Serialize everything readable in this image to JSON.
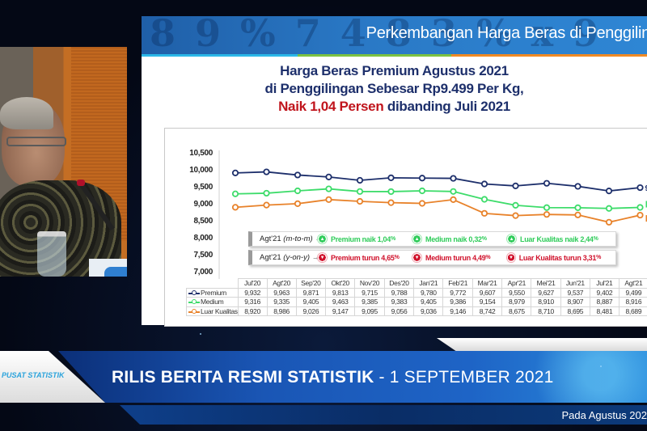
{
  "slide": {
    "header_title": "Perkembangan Harga Beras di Penggilin",
    "header_decoration": "8 9 % 7 4 8 3 % x 9",
    "headline": {
      "line1": "Harga Beras Premium Agustus 2021",
      "line2": "di Penggilingan Sebesar Rp9.499 Per Kg,",
      "line3_red": "Naik 1,04 Persen",
      "line3_rest": " dibanding Juli 2021"
    },
    "colors": {
      "premium": "#1d2f6b",
      "medium": "#3ddc6a",
      "luar_kualitas": "#e8822a",
      "up": "#2fcc5a",
      "down": "#d0112b"
    },
    "info_boxes": [
      {
        "label": "Agt'21",
        "label_italic": "(m-to-m)",
        "arrow": "→",
        "direction": "up",
        "items": [
          {
            "text": "Premium naik 1,04",
            "pct": "%"
          },
          {
            "text": "Medium naik 0,32",
            "pct": "%"
          },
          {
            "text": "Luar Kualitas naik 2,44",
            "pct": "%"
          }
        ]
      },
      {
        "label": "Agt'21",
        "label_italic": "(y-on-y)",
        "arrow": "→",
        "direction": "down",
        "items": [
          {
            "text": "Premium turun 4,65",
            "pct": "%"
          },
          {
            "text": "Medium turun 4,49",
            "pct": "%"
          },
          {
            "text": "Luar Kualitas turun 3,31",
            "pct": "%"
          }
        ]
      }
    ],
    "end_labels": {
      "premium": "9",
      "medium": "",
      "luar_kualitas": ""
    }
  },
  "chart_data": {
    "type": "line",
    "title": "Harga Beras Premium Agustus 2021 di Penggilingan Sebesar Rp9.499 Per Kg, Naik 1,04 Persen dibanding Juli 2021",
    "categories": [
      "Jul'20",
      "Agt'20",
      "Sep'20",
      "Okt'20",
      "Nov'20",
      "Des'20",
      "Jan'21",
      "Feb'21",
      "Mar'21",
      "Apr'21",
      "Mei'21",
      "Jun'21",
      "Jul'21",
      "Agt'21"
    ],
    "series": [
      {
        "name": "Premium",
        "color": "#1d2f6b",
        "values": [
          9932,
          9963,
          9871,
          9813,
          9715,
          9788,
          9780,
          9772,
          9607,
          9550,
          9627,
          9537,
          9402,
          9499
        ]
      },
      {
        "name": "Medium",
        "color": "#3ddc6a",
        "values": [
          9316,
          9335,
          9405,
          9463,
          9385,
          9383,
          9405,
          9386,
          9154,
          8979,
          8910,
          8907,
          8887,
          8916
        ]
      },
      {
        "name": "Luar Kualitas",
        "color": "#e8822a",
        "values": [
          8920,
          8986,
          9026,
          9147,
          9095,
          9056,
          9036,
          9146,
          8742,
          8675,
          8710,
          8695,
          8481,
          8689
        ]
      }
    ],
    "yticks": [
      "10,500",
      "10,000",
      "9,500",
      "9,000",
      "8,500",
      "8,000",
      "7,500",
      "7,000"
    ],
    "ylim": [
      7000,
      10500
    ],
    "xlabel": "",
    "ylabel": "",
    "grid": false,
    "legend_position": "table-rows",
    "table": {
      "rows": [
        {
          "label": "Premium",
          "values": [
            "9,932",
            "9,963",
            "9,871",
            "9,813",
            "9,715",
            "9,788",
            "9,780",
            "9,772",
            "9,607",
            "9,550",
            "9,627",
            "9,537",
            "9,402",
            "9,499"
          ]
        },
        {
          "label": "Medium",
          "values": [
            "9,316",
            "9,335",
            "9,405",
            "9,463",
            "9,385",
            "9,383",
            "9,405",
            "9,386",
            "9,154",
            "8,979",
            "8,910",
            "8,907",
            "8,887",
            "8,916"
          ]
        },
        {
          "label": "Luar Kualitas",
          "values": [
            "8,920",
            "8,986",
            "9,026",
            "9,147",
            "9,095",
            "9,056",
            "9,036",
            "9,146",
            "8,742",
            "8,675",
            "8,710",
            "8,695",
            "8,481",
            "8,689"
          ]
        }
      ]
    }
  },
  "banner": {
    "org_text": "PUSAT STATISTIK",
    "title_bold": "RILIS BERITA RESMI STATISTIK",
    "title_rest": " - 1 SEPTEMBER 2021",
    "ticker": "Pada Agustus 202"
  }
}
